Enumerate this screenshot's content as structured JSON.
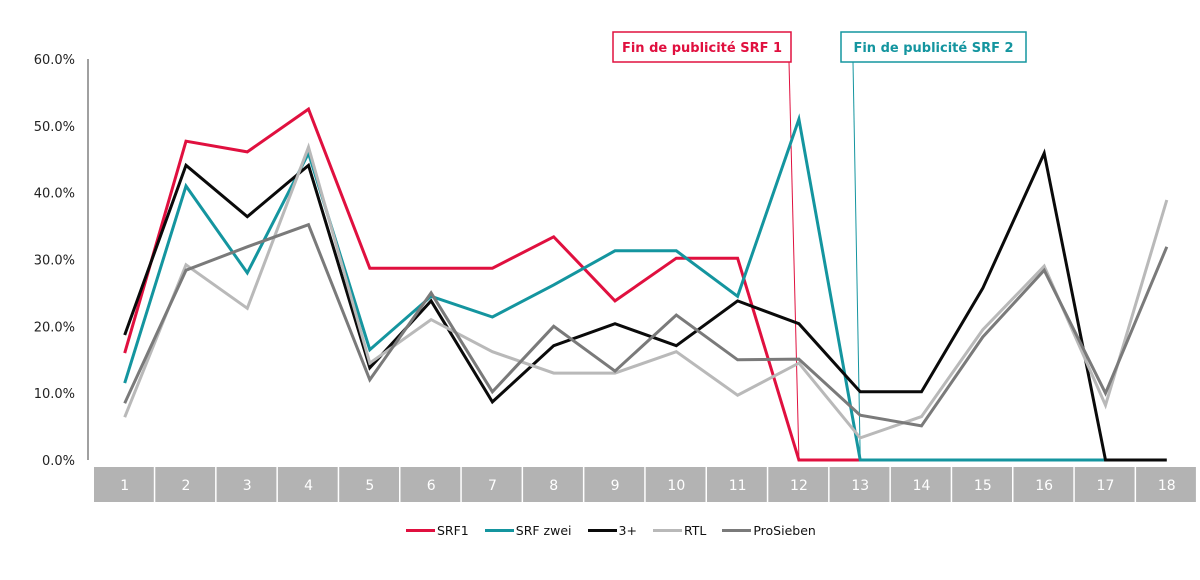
{
  "chart_data": {
    "type": "line",
    "title": "",
    "xlabel": "",
    "ylabel": "",
    "ylim": [
      0,
      60
    ],
    "yticks": [
      "0.0%",
      "10.0%",
      "20.0%",
      "30.0%",
      "40.0%",
      "50.0%",
      "60.0%"
    ],
    "ytick_values": [
      0,
      10,
      20,
      30,
      40,
      50,
      60
    ],
    "categories": [
      "1",
      "2",
      "3",
      "4",
      "5",
      "6",
      "7",
      "8",
      "9",
      "10",
      "11",
      "12",
      "13",
      "14",
      "15",
      "16",
      "17",
      "18"
    ],
    "grid": false,
    "legend_position": "bottom-center",
    "series": [
      {
        "name": "SRF1",
        "color": "#e0103f",
        "values": [
          16.0,
          47.7,
          46.1,
          52.5,
          28.7,
          28.7,
          28.7,
          33.4,
          23.8,
          30.2,
          30.2,
          0,
          0,
          null,
          null,
          null,
          null,
          null
        ]
      },
      {
        "name": "SRF zwei",
        "color": "#14959f",
        "values": [
          11.5,
          41.0,
          28.0,
          45.9,
          16.5,
          24.5,
          21.4,
          26.2,
          31.3,
          31.3,
          24.5,
          51.0,
          0,
          0,
          0,
          0,
          0,
          null
        ]
      },
      {
        "name": "3+",
        "color": "#0a0a0a",
        "values": [
          18.7,
          44.1,
          36.4,
          44.1,
          13.8,
          23.8,
          8.7,
          17.1,
          20.4,
          17.1,
          23.8,
          20.4,
          10.2,
          10.2,
          25.7,
          45.9,
          0,
          0
        ]
      },
      {
        "name": "RTL",
        "color": "#b9b9b9",
        "values": [
          6.4,
          29.2,
          22.7,
          46.8,
          14.5,
          21.0,
          16.2,
          13.0,
          13.0,
          16.2,
          9.7,
          14.5,
          3.3,
          6.5,
          19.5,
          29.0,
          8.2,
          38.9
        ]
      },
      {
        "name": "ProSieben",
        "color": "#7a7a7a",
        "values": [
          8.5,
          28.4,
          31.9,
          35.2,
          12.0,
          25.0,
          10.2,
          20.0,
          13.3,
          21.7,
          15.0,
          15.1,
          6.7,
          5.1,
          18.4,
          28.4,
          10.0,
          31.9
        ]
      }
    ],
    "annotations": [
      {
        "text": "Fin de publicité SRF 1",
        "color": "#e0103f",
        "category": "12"
      },
      {
        "text": "Fin de publicité SRF 2",
        "color": "#14959f",
        "category": "13"
      }
    ],
    "category_box_color": "#b3b3b3",
    "axis_color": "#a0a0a0"
  }
}
